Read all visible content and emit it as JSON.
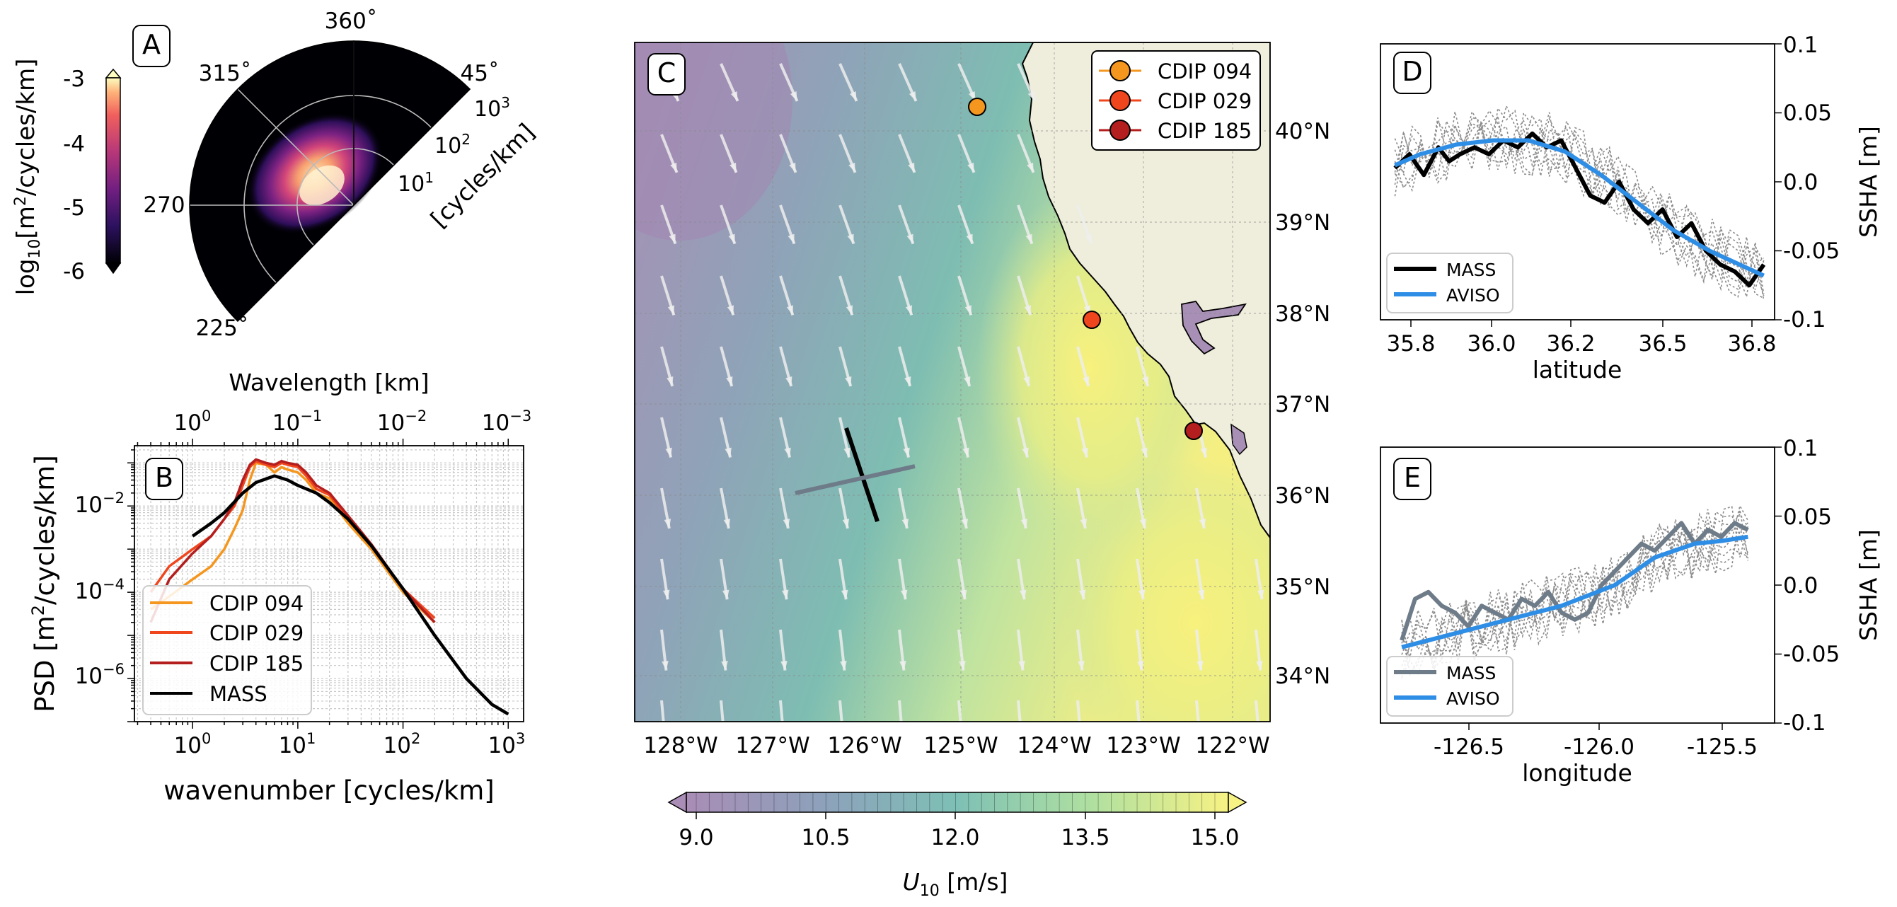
{
  "chart_data": [
    {
      "panel": "A",
      "type": "heatmap",
      "subtype": "polar-directional-spectrum",
      "label": "A",
      "angle_labels": [
        "360$^\\circ$",
        "315$^\\circ$",
        "45$^\\circ$",
        "270",
        "225$^\\circ$"
      ],
      "angle_label_text": [
        "360˚",
        "315˚",
        "45˚",
        "270",
        "225˚"
      ],
      "radial_tick_labels": [
        {
          "base": "10",
          "exp": "1"
        },
        {
          "base": "10",
          "exp": "2"
        },
        {
          "base": "10",
          "exp": "3"
        }
      ],
      "radial_label": "[cycles/km]",
      "colorbar": {
        "label_base": "log",
        "label_sub": "10",
        "label_rest": "[m",
        "label_sup": "2",
        "label_end": "/cycles/km]",
        "ticks": [
          "-3",
          "-4",
          "-5",
          "-6"
        ],
        "range": [
          -6,
          -3
        ],
        "colormap": "magma",
        "extend": "both"
      }
    },
    {
      "panel": "B",
      "type": "line",
      "label": "B",
      "xscale": "log",
      "yscale": "log",
      "xlabel": "wavenumber [cycles/km]",
      "ylabel_main": "PSD [m",
      "ylabel_sup": "2",
      "ylabel_end": "/cycles/km]",
      "top_xlabel": "Wavelength [km]",
      "x_ticks": [
        {
          "base": "10",
          "exp": "0"
        },
        {
          "base": "10",
          "exp": "1"
        },
        {
          "base": "10",
          "exp": "2"
        },
        {
          "base": "10",
          "exp": "3"
        }
      ],
      "top_ticks": [
        {
          "base": "10",
          "exp": "0"
        },
        {
          "base": "10",
          "exp": "−1"
        },
        {
          "base": "10",
          "exp": "−2"
        },
        {
          "base": "10",
          "exp": "−3"
        }
      ],
      "y_ticks": [
        {
          "base": "10",
          "exp": "−2"
        },
        {
          "base": "10",
          "exp": "−4"
        },
        {
          "base": "10",
          "exp": "−6"
        }
      ],
      "xlim": [
        0.28,
        1400
      ],
      "ylim": [
        1e-07,
        0.25
      ],
      "legend_position": "lower-left",
      "series": [
        {
          "name": "CDIP 094",
          "color": "#f5961e",
          "x": [
            0.4,
            0.6,
            1.0,
            1.5,
            2.0,
            2.5,
            3.0,
            3.5,
            4.0,
            5.0,
            6.0,
            7.0,
            8.0,
            10,
            12,
            15,
            20,
            30,
            50,
            100,
            200
          ],
          "y": [
            4e-05,
            8e-05,
            0.0002,
            0.0004,
            0.001,
            0.003,
            0.008,
            0.04,
            0.1,
            0.09,
            0.06,
            0.08,
            0.07,
            0.06,
            0.04,
            0.02,
            0.015,
            0.004,
            0.001,
            0.0001,
            2e-05
          ]
        },
        {
          "name": "CDIP 029",
          "color": "#f0461e",
          "x": [
            0.4,
            0.6,
            1.0,
            1.5,
            2.0,
            2.5,
            3.0,
            3.5,
            4.0,
            5.0,
            6.0,
            7.0,
            8.0,
            10,
            12,
            15,
            20,
            30,
            50,
            100,
            200
          ],
          "y": [
            0.0001,
            0.0004,
            0.001,
            0.002,
            0.005,
            0.01,
            0.03,
            0.08,
            0.11,
            0.09,
            0.08,
            0.1,
            0.09,
            0.08,
            0.05,
            0.025,
            0.018,
            0.005,
            0.0012,
            0.00012,
            2.5e-05
          ]
        },
        {
          "name": "CDIP 185",
          "color": "#b41e1e",
          "x": [
            0.4,
            0.6,
            1.0,
            1.5,
            2.0,
            2.5,
            3.0,
            3.5,
            4.0,
            5.0,
            6.0,
            7.0,
            8.0,
            10,
            12,
            15,
            20,
            30,
            50,
            100,
            200
          ],
          "y": [
            2e-05,
            0.0002,
            0.0008,
            0.002,
            0.005,
            0.012,
            0.04,
            0.09,
            0.12,
            0.1,
            0.09,
            0.11,
            0.1,
            0.09,
            0.06,
            0.03,
            0.02,
            0.006,
            0.0013,
            0.00012,
            2e-05
          ]
        },
        {
          "name": "MASS",
          "color": "#000000",
          "x": [
            1.0,
            1.5,
            2.0,
            3.0,
            4.0,
            6.0,
            8.0,
            10,
            15,
            20,
            30,
            50,
            100,
            200,
            400,
            700,
            1000
          ],
          "y": [
            0.002,
            0.004,
            0.007,
            0.02,
            0.035,
            0.05,
            0.04,
            0.03,
            0.02,
            0.012,
            0.005,
            0.0012,
            0.00012,
            1e-05,
            1e-06,
            2.5e-07,
            1.5e-07
          ]
        }
      ]
    },
    {
      "panel": "C",
      "type": "heatmap",
      "subtype": "map-wind-speed",
      "label": "C",
      "x_ticks": [
        "128°W",
        "127°W",
        "126°W",
        "125°W",
        "124°W",
        "123°W",
        "122°W"
      ],
      "y_ticks": [
        "40°N",
        "39°N",
        "38°N",
        "37°N",
        "36°N",
        "35°N",
        "34°N"
      ],
      "legend_position": "top-right",
      "colorbar": {
        "label_main": "U",
        "label_sub": "10",
        "label_rest": " [m/s]",
        "ticks": [
          "9.0",
          "10.5",
          "12.0",
          "13.5",
          "15.0"
        ],
        "range": [
          9.0,
          15.0
        ],
        "colormap": "viridis-light",
        "extend": "both"
      },
      "buoys": [
        {
          "name": "CDIP 094",
          "color": "#f5961e"
        },
        {
          "name": "CDIP 029",
          "color": "#f0461e"
        },
        {
          "name": "CDIP 185",
          "color": "#b41e1e"
        }
      ]
    },
    {
      "panel": "D",
      "type": "line",
      "label": "D",
      "xlabel": "latitude",
      "ylabel": "SSHA [m]",
      "x_ticks": [
        "35.8",
        "36.0",
        "36.2",
        "36.5",
        "36.8"
      ],
      "y_ticks": [
        "0.1",
        "0.05",
        "0.0",
        "-0.05",
        "-0.1"
      ],
      "ylim": [
        -0.1,
        0.1
      ],
      "legend_position": "lower-left",
      "series": [
        {
          "name": "MASS",
          "color": "#000000",
          "x": [
            35.78,
            35.82,
            35.86,
            35.9,
            35.93,
            35.96,
            36.0,
            36.04,
            36.08,
            36.12,
            36.16,
            36.2,
            36.24,
            36.28,
            36.32,
            36.36,
            36.4,
            36.44,
            36.48,
            36.52,
            36.56,
            36.6,
            36.64,
            36.68,
            36.72,
            36.76,
            36.8
          ],
          "y": [
            0.01,
            0.02,
            0.005,
            0.025,
            0.015,
            0.02,
            0.025,
            0.02,
            0.03,
            0.025,
            0.035,
            0.025,
            0.03,
            0.01,
            -0.01,
            -0.015,
            0.0,
            -0.02,
            -0.03,
            -0.02,
            -0.04,
            -0.03,
            -0.05,
            -0.06,
            -0.065,
            -0.075,
            -0.06
          ]
        },
        {
          "name": "AVISO",
          "color": "#2e8ee6",
          "x": [
            35.78,
            35.85,
            35.95,
            36.05,
            36.15,
            36.25,
            36.35,
            36.45,
            36.55,
            36.65,
            36.8
          ],
          "y": [
            0.012,
            0.02,
            0.027,
            0.03,
            0.03,
            0.022,
            0.005,
            -0.015,
            -0.035,
            -0.05,
            -0.068
          ]
        }
      ]
    },
    {
      "panel": "E",
      "type": "line",
      "label": "E",
      "xlabel": "longitude",
      "ylabel": "SSHA [m]",
      "x_ticks": [
        "-126.5",
        "-126.0",
        "-125.5"
      ],
      "y_ticks": [
        "0.1",
        "0.05",
        "0.0",
        "-0.05",
        "-0.1"
      ],
      "ylim": [
        -0.1,
        0.1
      ],
      "legend_position": "lower-left",
      "series": [
        {
          "name": "MASS",
          "color": "#6e7b88",
          "x": [
            -126.7,
            -126.65,
            -126.6,
            -126.55,
            -126.5,
            -126.45,
            -126.4,
            -126.35,
            -126.3,
            -126.25,
            -126.2,
            -126.15,
            -126.1,
            -126.05,
            -126.0,
            -125.95,
            -125.9,
            -125.85,
            -125.8,
            -125.75,
            -125.7,
            -125.65,
            -125.6,
            -125.55,
            -125.5,
            -125.45,
            -125.4
          ],
          "y": [
            -0.04,
            -0.01,
            -0.005,
            -0.015,
            -0.02,
            -0.03,
            -0.015,
            -0.02,
            -0.025,
            -0.01,
            -0.015,
            -0.005,
            -0.02,
            -0.025,
            -0.02,
            0.0,
            0.01,
            0.02,
            0.03,
            0.025,
            0.035,
            0.045,
            0.03,
            0.04,
            0.035,
            0.045,
            0.04
          ]
        },
        {
          "name": "AVISO",
          "color": "#2e8ee6",
          "x": [
            -126.7,
            -126.5,
            -126.3,
            -126.1,
            -125.9,
            -125.75,
            -125.6,
            -125.5,
            -125.4
          ],
          "y": [
            -0.045,
            -0.035,
            -0.025,
            -0.015,
            0.0,
            0.02,
            0.03,
            0.032,
            0.035
          ]
        }
      ]
    }
  ]
}
